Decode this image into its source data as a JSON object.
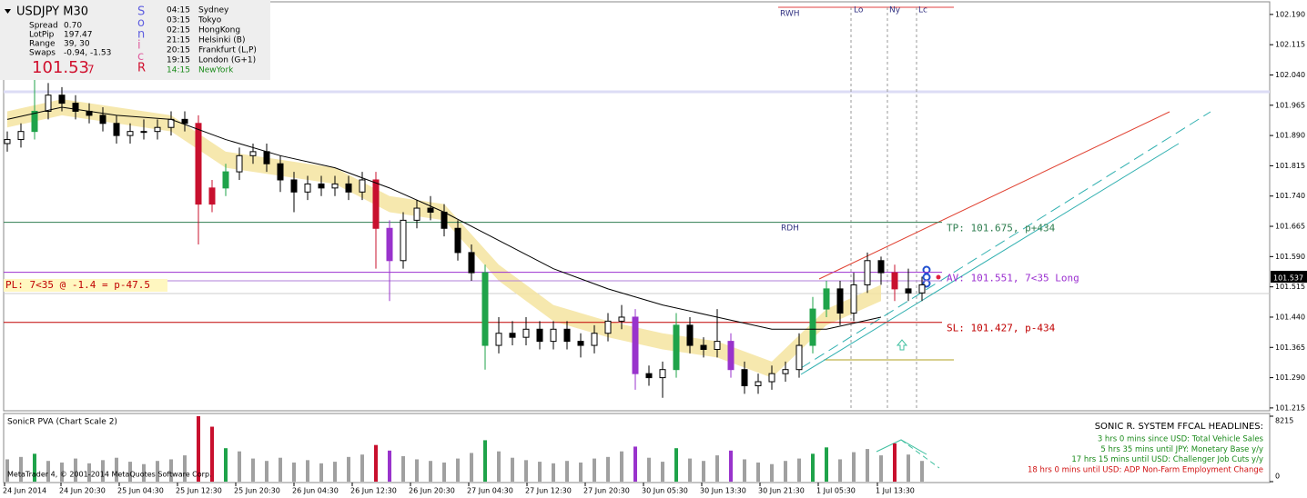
{
  "info": {
    "symbol": "USDJPY  M30",
    "rows": [
      [
        "Spread",
        "0.70"
      ],
      [
        "LotPip",
        "197.47"
      ],
      [
        "Range",
        "39, 30"
      ],
      [
        "Swaps",
        "-0.94, -1.53"
      ]
    ],
    "price": "101.53",
    "price_digit": "7",
    "sonic": [
      "S",
      "o",
      "n",
      "i",
      "c",
      "R"
    ],
    "sessions": [
      [
        "04:15",
        "Sydney"
      ],
      [
        "03:15",
        "Tokyo"
      ],
      [
        "02:15",
        "HongKong"
      ],
      [
        "21:15",
        "Helsinki  (B)"
      ],
      [
        "20:15",
        "Frankfurt  (L,P)"
      ],
      [
        "19:15",
        "London  (G+1)"
      ],
      [
        "14:15",
        "NewYork"
      ]
    ]
  },
  "chart_data": {
    "type": "candlestick",
    "ohlc": [
      [
        101.87,
        101.9,
        101.85,
        101.88
      ],
      [
        101.88,
        101.92,
        101.86,
        101.9
      ],
      [
        101.9,
        102.04,
        101.88,
        101.95
      ],
      [
        101.95,
        102.02,
        101.93,
        101.99
      ],
      [
        101.99,
        102.01,
        101.95,
        101.97
      ],
      [
        101.97,
        101.99,
        101.93,
        101.95
      ],
      [
        101.95,
        101.97,
        101.92,
        101.94
      ],
      [
        101.94,
        101.96,
        101.9,
        101.92
      ],
      [
        101.92,
        101.94,
        101.87,
        101.89
      ],
      [
        101.89,
        101.92,
        101.87,
        101.9
      ],
      [
        101.9,
        101.93,
        101.88,
        101.9
      ],
      [
        101.9,
        101.93,
        101.88,
        101.91
      ],
      [
        101.91,
        101.95,
        101.89,
        101.93
      ],
      [
        101.93,
        101.95,
        101.9,
        101.92
      ],
      [
        101.92,
        101.94,
        101.62,
        101.72
      ],
      [
        101.72,
        101.78,
        101.7,
        101.76
      ],
      [
        101.76,
        101.82,
        101.74,
        101.8
      ],
      [
        101.8,
        101.86,
        101.78,
        101.84
      ],
      [
        101.84,
        101.87,
        101.82,
        101.85
      ],
      [
        101.85,
        101.87,
        101.8,
        101.82
      ],
      [
        101.82,
        101.84,
        101.75,
        101.78
      ],
      [
        101.78,
        101.8,
        101.7,
        101.75
      ],
      [
        101.75,
        101.79,
        101.73,
        101.77
      ],
      [
        101.77,
        101.79,
        101.74,
        101.76
      ],
      [
        101.76,
        101.79,
        101.74,
        101.77
      ],
      [
        101.77,
        101.79,
        101.73,
        101.75
      ],
      [
        101.75,
        101.8,
        101.73,
        101.78
      ],
      [
        101.78,
        101.8,
        101.56,
        101.66
      ],
      [
        101.66,
        101.68,
        101.48,
        101.58
      ],
      [
        101.58,
        101.7,
        101.56,
        101.68
      ],
      [
        101.68,
        101.73,
        101.66,
        101.71
      ],
      [
        101.71,
        101.74,
        101.68,
        101.7
      ],
      [
        101.7,
        101.72,
        101.64,
        101.66
      ],
      [
        101.66,
        101.68,
        101.58,
        101.6
      ],
      [
        101.6,
        101.62,
        101.53,
        101.55
      ],
      [
        101.55,
        101.57,
        101.31,
        101.37
      ],
      [
        101.37,
        101.44,
        101.35,
        101.4
      ],
      [
        101.4,
        101.43,
        101.37,
        101.39
      ],
      [
        101.39,
        101.44,
        101.37,
        101.41
      ],
      [
        101.41,
        101.43,
        101.36,
        101.38
      ],
      [
        101.38,
        101.43,
        101.36,
        101.41
      ],
      [
        101.41,
        101.43,
        101.36,
        101.38
      ],
      [
        101.38,
        101.4,
        101.34,
        101.37
      ],
      [
        101.37,
        101.42,
        101.35,
        101.4
      ],
      [
        101.4,
        101.45,
        101.38,
        101.43
      ],
      [
        101.43,
        101.47,
        101.41,
        101.44
      ],
      [
        101.44,
        101.46,
        101.26,
        101.3
      ],
      [
        101.3,
        101.32,
        101.27,
        101.29
      ],
      [
        101.29,
        101.33,
        101.24,
        101.31
      ],
      [
        101.31,
        101.45,
        101.29,
        101.42
      ],
      [
        101.42,
        101.44,
        101.35,
        101.37
      ],
      [
        101.37,
        101.39,
        101.34,
        101.36
      ],
      [
        101.36,
        101.46,
        101.34,
        101.38
      ],
      [
        101.38,
        101.4,
        101.29,
        101.31
      ],
      [
        101.31,
        101.33,
        101.25,
        101.27
      ],
      [
        101.27,
        101.3,
        101.25,
        101.28
      ],
      [
        101.28,
        101.32,
        101.26,
        101.3
      ],
      [
        101.3,
        101.33,
        101.28,
        101.31
      ],
      [
        101.31,
        101.4,
        101.29,
        101.37
      ],
      [
        101.37,
        101.49,
        101.35,
        101.46
      ],
      [
        101.46,
        101.53,
        101.44,
        101.51
      ],
      [
        101.51,
        101.53,
        101.42,
        101.45
      ],
      [
        101.45,
        101.55,
        101.43,
        101.52
      ],
      [
        101.52,
        101.6,
        101.5,
        101.58
      ],
      [
        101.58,
        101.59,
        101.52,
        101.55
      ],
      [
        101.55,
        101.57,
        101.48,
        101.51
      ],
      [
        101.51,
        101.56,
        101.48,
        101.5
      ],
      [
        101.5,
        101.54,
        101.48,
        101.52
      ]
    ],
    "ema": [
      101.93,
      101.96,
      101.94,
      101.93,
      101.88,
      101.84,
      101.81,
      101.76,
      101.7,
      101.63,
      101.56,
      101.51,
      101.47,
      101.44,
      101.41,
      101.41,
      101.44
    ],
    "band_high": [
      101.95,
      101.98,
      101.96,
      101.94,
      101.85,
      101.83,
      101.81,
      101.74,
      101.72,
      101.57,
      101.47,
      101.43,
      101.4,
      101.38,
      101.33,
      101.46,
      101.52
    ],
    "band_low": [
      101.91,
      101.94,
      101.92,
      101.9,
      101.81,
      101.79,
      101.77,
      101.7,
      101.68,
      101.53,
      101.43,
      101.39,
      101.36,
      101.34,
      101.29,
      101.42,
      101.48
    ],
    "ylim": [
      101.208,
      102.219
    ],
    "yticks": [
      {
        "value": 102.19,
        "label": "102.190"
      },
      {
        "value": 102.115,
        "label": "102.115"
      },
      {
        "value": 102.04,
        "label": "102.040"
      },
      {
        "value": 101.965,
        "label": "101.965"
      },
      {
        "value": 101.89,
        "label": "101.890"
      },
      {
        "value": 101.815,
        "label": "101.815"
      },
      {
        "value": 101.74,
        "label": "101.740"
      },
      {
        "value": 101.665,
        "label": "101.665"
      },
      {
        "value": 101.59,
        "label": "101.590"
      },
      {
        "value": 101.515,
        "label": "101.515"
      },
      {
        "value": 101.44,
        "label": "101.440"
      },
      {
        "value": 101.365,
        "label": "101.365"
      },
      {
        "value": 101.29,
        "label": "101.290"
      },
      {
        "value": 101.215,
        "label": "101.215"
      }
    ],
    "current_price": 101.537,
    "levels": [
      {
        "value": 101.675,
        "label": "TP: 101.675, p+434",
        "color": "#2e7d4f"
      },
      {
        "value": 101.551,
        "label": "AV: 101.551, 7<35 Long",
        "color": "#9b30d0"
      },
      {
        "value": 101.427,
        "label": "SL: 101.427, p-434",
        "color": "#c00000"
      }
    ],
    "pl": {
      "value": 101.53,
      "label": "PL: 7<35 @ -1.4 = p-47.5",
      "color": "#b27fd8"
    },
    "markers": [
      "RWH",
      "Lo",
      "Ny",
      "Lc",
      "RDH"
    ],
    "x_labels": [
      "24 Jun 2014",
      "24 Jun 20:30",
      "25 Jun 04:30",
      "25 Jun 12:30",
      "25 Jun 20:30",
      "26 Jun 04:30",
      "26 Jun 12:30",
      "26 Jun 20:30",
      "27 Jun 04:30",
      "27 Jun 12:30",
      "27 Jun 20:30",
      "30 Jun 05:30",
      "30 Jun 13:30",
      "30 Jun 21:30",
      "1 Jul 05:30",
      "1 Jul 13:30"
    ],
    "volume": {
      "title": "SonicR PVA  (Chart Scale 2)",
      "ylim": [
        0,
        8215
      ],
      "yticks": [
        0,
        8215
      ],
      "values": [
        2800,
        3100,
        3500,
        2600,
        2400,
        2900,
        2300,
        2700,
        3000,
        2500,
        2200,
        2600,
        2800,
        3300,
        8215,
        6900,
        4200,
        3800,
        2900,
        2600,
        3000,
        2400,
        2700,
        2300,
        2500,
        3100,
        3400,
        4600,
        3900,
        3200,
        2800,
        2600,
        2400,
        2900,
        3600,
        5200,
        3800,
        3000,
        2700,
        2500,
        2300,
        2600,
        2400,
        2900,
        3100,
        3800,
        4400,
        3000,
        2500,
        4200,
        2900,
        2600,
        3300,
        3900,
        2800,
        2400,
        2200,
        2600,
        2900,
        3500,
        4300,
        2800,
        3700,
        4100,
        3300,
        4800,
        3400,
        2600
      ],
      "colors": [
        "#a0a0a0",
        "#a0a0a0",
        "#1fa34a",
        "#a0a0a0",
        "#a0a0a0",
        "#a0a0a0",
        "#a0a0a0",
        "#a0a0a0",
        "#a0a0a0",
        "#a0a0a0",
        "#a0a0a0",
        "#a0a0a0",
        "#a0a0a0",
        "#a0a0a0",
        "#c8102e",
        "#c8102e",
        "#1fa34a",
        "#a0a0a0",
        "#a0a0a0",
        "#a0a0a0",
        "#a0a0a0",
        "#a0a0a0",
        "#a0a0a0",
        "#a0a0a0",
        "#a0a0a0",
        "#a0a0a0",
        "#a0a0a0",
        "#c8102e",
        "#9933cc",
        "#a0a0a0",
        "#a0a0a0",
        "#a0a0a0",
        "#a0a0a0",
        "#a0a0a0",
        "#a0a0a0",
        "#1fa34a",
        "#a0a0a0",
        "#a0a0a0",
        "#a0a0a0",
        "#a0a0a0",
        "#a0a0a0",
        "#a0a0a0",
        "#a0a0a0",
        "#a0a0a0",
        "#a0a0a0",
        "#a0a0a0",
        "#9933cc",
        "#a0a0a0",
        "#a0a0a0",
        "#1fa34a",
        "#a0a0a0",
        "#a0a0a0",
        "#a0a0a0",
        "#9933cc",
        "#a0a0a0",
        "#a0a0a0",
        "#a0a0a0",
        "#a0a0a0",
        "#a0a0a0",
        "#1fa34a",
        "#1fa34a",
        "#a0a0a0",
        "#a0a0a0",
        "#a0a0a0",
        "#a0a0a0",
        "#c8102e",
        "#a0a0a0",
        "#a0a0a0"
      ]
    }
  },
  "headlines": {
    "title": "SONIC R. SYSTEM  FFCAL HEADLINES:",
    "items": [
      {
        "text": "3 hrs 0 mins since USD: Total Vehicle Sales",
        "color": "#1a8a1a"
      },
      {
        "text": "5 hrs 35 mins until JPY: Monetary Base y/y",
        "color": "#1a8a1a"
      },
      {
        "text": "17 hrs 15 mins until USD: Challenger Job Cuts y/y",
        "color": "#1a8a1a"
      },
      {
        "text": "18 hrs 0 mins until USD: ADP Non-Farm Employment Change",
        "color": "#d01010"
      }
    ]
  },
  "copyright": "MetaTrader 4, © 2001-2014 MetaQuotes Software Corp."
}
